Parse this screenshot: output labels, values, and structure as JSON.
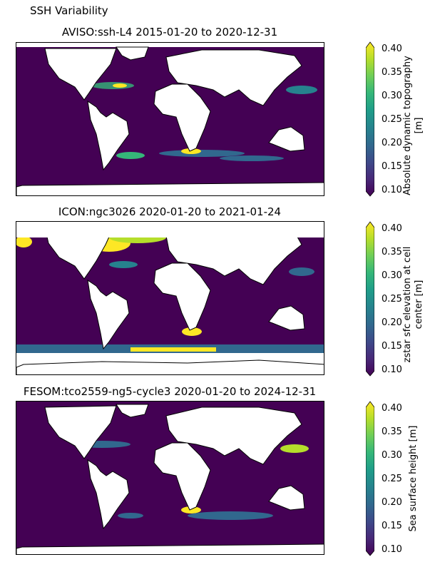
{
  "figure": {
    "suptitle": "SSH Variability"
  },
  "panels": [
    {
      "title": "AVISO:ssh-L4 2015-01-20 to 2020-12-31",
      "colorbar_label_line1": "Absolute dynamic topography",
      "colorbar_label_line2": "[m]"
    },
    {
      "title": "ICON:ngc3026 2020-01-20 to 2021-01-24",
      "colorbar_label_line1": "zstar sfc elevation at cell",
      "colorbar_label_line2": "center [m]"
    },
    {
      "title": "FESOM:tco2559-ng5-cycle3 2020-01-20 to 2024-12-31",
      "colorbar_label_line1": "Sea surface height [m]",
      "colorbar_label_line2": ""
    }
  ],
  "colorbar": {
    "colormap": "viridis",
    "ticks": [
      "0.40",
      "0.35",
      "0.30",
      "0.25",
      "0.20",
      "0.15",
      "0.10"
    ],
    "range": [
      0.1,
      0.4
    ],
    "extend": "both",
    "colors": [
      "#440154",
      "#482878",
      "#3e4989",
      "#31688e",
      "#26828e",
      "#1f9e89",
      "#35b779",
      "#6ece58",
      "#b5de2b",
      "#fde725"
    ]
  },
  "chart_data": {
    "type": "heatmap",
    "projection": "PlateCarree",
    "variable": "ssh standard deviation",
    "vmin": 0.1,
    "vmax": 0.4,
    "panels": [
      "AVISO:ssh-L4",
      "ICON:ngc3026",
      "FESOM:tco2559-ng5-cycle3"
    ]
  }
}
